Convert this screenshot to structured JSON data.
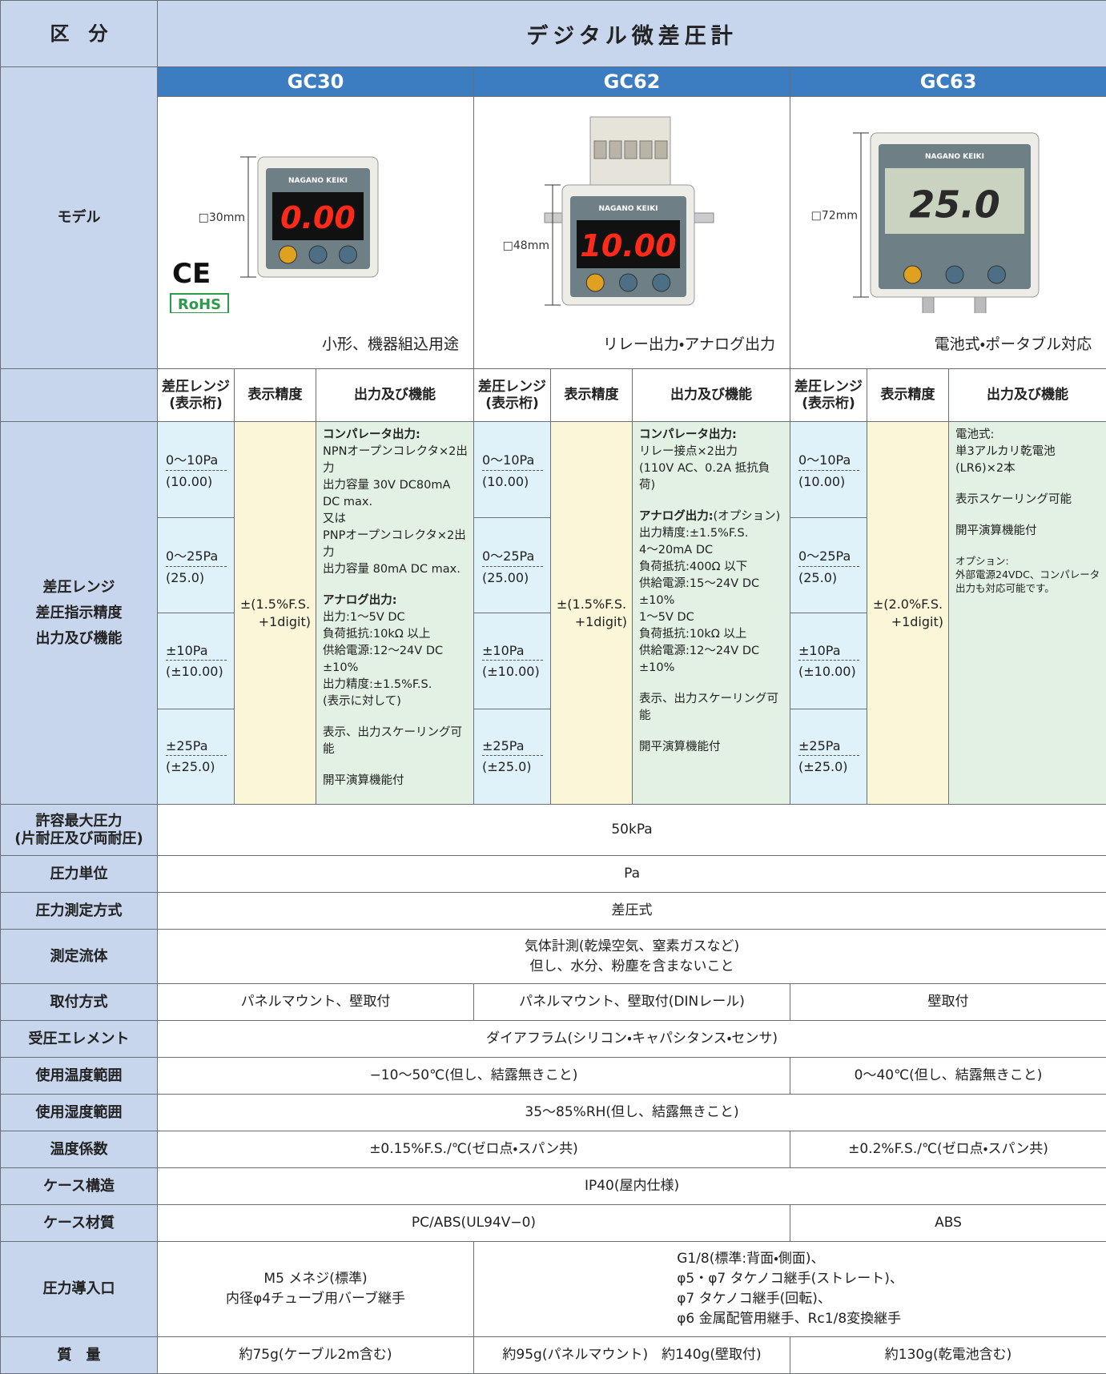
{
  "header": {
    "category_label": "区　分",
    "title": "デジタル微差圧計",
    "brand": "NAGANO KEIKI"
  },
  "model_label": "モデル",
  "models": [
    {
      "name": "GC30",
      "size": "□30mm",
      "display": "0.00",
      "marks": [
        "CE",
        "RoHS"
      ],
      "caption": "小形、機器組込用途"
    },
    {
      "name": "GC62",
      "size": "□48mm",
      "display": "10.00",
      "caption": "リレー出力・アナログ出力"
    },
    {
      "name": "GC63",
      "size": "□72mm",
      "display": "25.0",
      "caption": "電池式・ポータブル対応"
    }
  ],
  "spec_headers": [
    [
      "差圧レンジ",
      "(表示桁)"
    ],
    [
      "表示精度"
    ],
    [
      "出力及び機能"
    ]
  ],
  "range_label": [
    "差圧レンジ",
    "差圧指示精度",
    "出力及び機能"
  ],
  "specs": [
    {
      "ranges": [
        {
          "range": "0〜10Pa",
          "digits": "(10.00)"
        },
        {
          "range": "0〜25Pa",
          "digits": "(25.0)"
        },
        {
          "range": "±10Pa",
          "digits": "(±10.00)"
        },
        {
          "range": "±25Pa",
          "digits": "(±25.0)"
        }
      ],
      "accuracy": [
        "±(1.5%F.S.",
        "+1digit)"
      ],
      "functions": [
        {
          "heading": "コンパレータ出力:",
          "lines": [
            "NPNオープンコレクタ×2出力",
            "出力容量 30V DC80mA",
            "DC max.",
            "又は",
            "PNPオープンコレクタ×2出力",
            "出力容量 80mA DC max."
          ]
        },
        {
          "heading": "アナログ出力:",
          "lines": [
            "出力:1〜5V DC",
            "負荷抵抗:10kΩ 以上",
            "供給電源:12〜24V DC",
            "±10%",
            "出力精度:±1.5%F.S.",
            "(表示に対して)"
          ]
        },
        {
          "lines": [
            "表示、出力スケーリング可能"
          ]
        },
        {
          "lines": [
            "開平演算機能付"
          ]
        }
      ]
    },
    {
      "ranges": [
        {
          "range": "0〜10Pa",
          "digits": "(10.00)"
        },
        {
          "range": "0〜25Pa",
          "digits": "(25.00)"
        },
        {
          "range": "±10Pa",
          "digits": "(±10.00)"
        },
        {
          "range": "±25Pa",
          "digits": "(±25.0)"
        }
      ],
      "accuracy": [
        "±(1.5%F.S.",
        "+1digit)"
      ],
      "functions": [
        {
          "heading": "コンパレータ出力:",
          "lines": [
            "リレー接点×2出力",
            "(110V AC、0.2A 抵抗負荷)"
          ]
        },
        {
          "heading": "アナログ出力:",
          "heading_note": "(オプション)",
          "lines": [
            "出力精度:±1.5%F.S.",
            "4〜20mA DC",
            "負荷抵抗:400Ω 以下",
            "供給電源:15〜24V DC",
            "±10%",
            "1〜5V DC",
            "負荷抵抗:10kΩ 以上",
            "供給電源:12〜24V DC",
            "±10%"
          ]
        },
        {
          "lines": [
            "表示、出力スケーリング可能"
          ]
        },
        {
          "lines": [
            "開平演算機能付"
          ]
        }
      ]
    },
    {
      "ranges": [
        {
          "range": "0〜10Pa",
          "digits": "(10.00)"
        },
        {
          "range": "0〜25Pa",
          "digits": "(25.0)"
        },
        {
          "range": "±10Pa",
          "digits": "(±10.00)"
        },
        {
          "range": "±25Pa",
          "digits": "(±25.0)"
        }
      ],
      "accuracy": [
        "±(2.0%F.S.",
        "+1digit)"
      ],
      "functions": [
        {
          "lines": [
            "電池式:",
            "単3アルカリ乾電池",
            "(LR6)×2本"
          ]
        },
        {
          "lines": [
            "表示スケーリング可能"
          ]
        },
        {
          "lines": [
            "開平演算機能付"
          ]
        },
        {
          "note": [
            "オプション:",
            "外部電源24VDC、コンパレータ出力も対応可能です。"
          ]
        }
      ]
    }
  ],
  "rows": [
    {
      "label": [
        "許容最大圧力",
        "(片耐圧及び両耐圧)"
      ],
      "cells": [
        {
          "models": [
            "GC30",
            "GC62",
            "GC63"
          ],
          "lines": [
            "50kPa"
          ]
        }
      ]
    },
    {
      "label": [
        "圧力単位"
      ],
      "cells": [
        {
          "models": [
            "GC30",
            "GC62",
            "GC63"
          ],
          "lines": [
            "Pa"
          ]
        }
      ]
    },
    {
      "label": [
        "圧力測定方式"
      ],
      "cells": [
        {
          "models": [
            "GC30",
            "GC62",
            "GC63"
          ],
          "lines": [
            "差圧式"
          ]
        }
      ]
    },
    {
      "label": [
        "測定流体"
      ],
      "cells": [
        {
          "models": [
            "GC30",
            "GC62",
            "GC63"
          ],
          "lines": [
            "気体計測(乾燥空気、窒素ガスなど)",
            "但し、水分、粉塵を含まないこと"
          ]
        }
      ]
    },
    {
      "label": [
        "取付方式"
      ],
      "cells": [
        {
          "models": [
            "GC30"
          ],
          "lines": [
            "パネルマウント、壁取付"
          ]
        },
        {
          "models": [
            "GC62"
          ],
          "lines": [
            "パネルマウント、壁取付(DINレール)"
          ]
        },
        {
          "models": [
            "GC63"
          ],
          "lines": [
            "壁取付"
          ]
        }
      ]
    },
    {
      "label": [
        "受圧エレメント"
      ],
      "cells": [
        {
          "models": [
            "GC30",
            "GC62",
            "GC63"
          ],
          "lines": [
            "ダイアフラム(シリコン・キャパシタンス・センサ)"
          ]
        }
      ]
    },
    {
      "label": [
        "使用温度範囲"
      ],
      "cells": [
        {
          "models": [
            "GC30",
            "GC62"
          ],
          "lines": [
            "−10〜50℃(但し、結露無きこと)"
          ]
        },
        {
          "models": [
            "GC63"
          ],
          "lines": [
            "0〜40℃(但し、結露無きこと)"
          ]
        }
      ]
    },
    {
      "label": [
        "使用湿度範囲"
      ],
      "cells": [
        {
          "models": [
            "GC30",
            "GC62",
            "GC63"
          ],
          "lines": [
            "35〜85%RH(但し、結露無きこと)"
          ]
        }
      ]
    },
    {
      "label": [
        "温度係数"
      ],
      "cells": [
        {
          "models": [
            "GC30",
            "GC62"
          ],
          "lines": [
            "±0.15%F.S./℃(ゼロ点・スパン共)"
          ]
        },
        {
          "models": [
            "GC63"
          ],
          "lines": [
            "±0.2%F.S./℃(ゼロ点・スパン共)"
          ]
        }
      ]
    },
    {
      "label": [
        "ケース構造"
      ],
      "cells": [
        {
          "models": [
            "GC30",
            "GC62",
            "GC63"
          ],
          "lines": [
            "IP40(屋内仕様)"
          ]
        }
      ]
    },
    {
      "label": [
        "ケース材質"
      ],
      "cells": [
        {
          "models": [
            "GC30",
            "GC62"
          ],
          "lines": [
            "PC/ABS(UL94V−0)"
          ]
        },
        {
          "models": [
            "GC63"
          ],
          "lines": [
            "ABS"
          ]
        }
      ]
    },
    {
      "label": [
        "圧力導入口"
      ],
      "cells": [
        {
          "models": [
            "GC30"
          ],
          "lines": [
            "M5 メネジ(標準)",
            "内径φ4チューブ用バーブ継手"
          ]
        },
        {
          "models": [
            "GC62",
            "GC63"
          ],
          "lines": [
            "G1/8(標準:背面・側面)、",
            "φ5・φ7 タケノコ継手(ストレート)、",
            "φ7 タケノコ継手(回転)、",
            "φ6 金属配管用継手、Rc1/8変換継手"
          ]
        }
      ]
    },
    {
      "label": [
        "質　量"
      ],
      "cells": [
        {
          "models": [
            "GC30"
          ],
          "lines": [
            "約75g(ケーブル2m含む)"
          ]
        },
        {
          "models": [
            "GC62"
          ],
          "lines": [
            "約95g(パネルマウント)　約140g(壁取付)"
          ]
        },
        {
          "models": [
            "GC63"
          ],
          "lines": [
            "約130g(乾電池含む)"
          ]
        }
      ]
    }
  ]
}
